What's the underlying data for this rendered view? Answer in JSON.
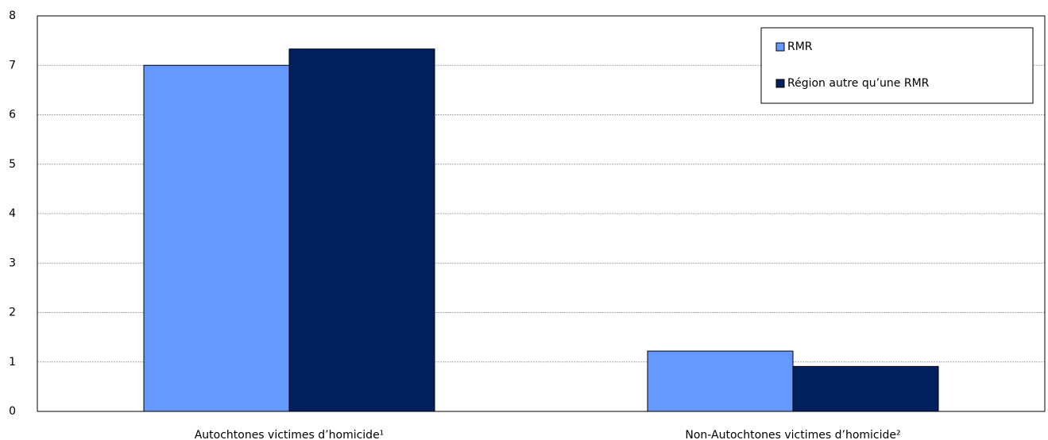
{
  "chart_data": {
    "type": "bar",
    "categories": [
      "Autochtones victimes d’homicide¹",
      "Non-Autochtones victimes d’homicide²"
    ],
    "series": [
      {
        "name": "RMR",
        "color": "#6699ff",
        "values": [
          7.0,
          1.22
        ]
      },
      {
        "name": "Région autre qu’une RMR",
        "color": "#002060",
        "values": [
          7.33,
          0.91
        ]
      }
    ],
    "ylim": [
      0,
      8
    ],
    "yticks": [
      0,
      1,
      2,
      3,
      4,
      5,
      6,
      7,
      8
    ],
    "grid": true,
    "legend": "top-right"
  }
}
